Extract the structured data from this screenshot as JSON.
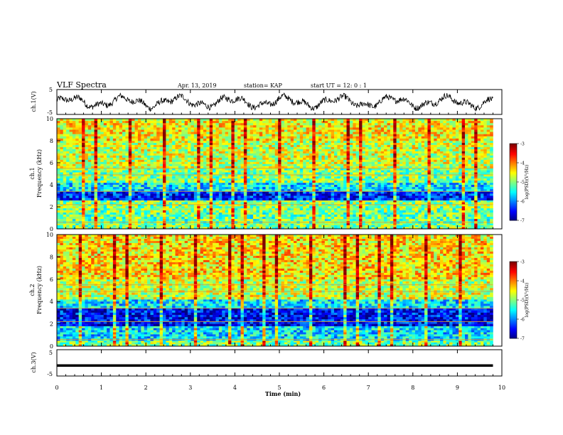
{
  "header": {
    "title": "VLF Spectra",
    "date": "Apr. 13, 2019",
    "station": "station= KAP",
    "start_ut": "start UT =  12: 0 : 1"
  },
  "chart_data": [
    {
      "type": "line",
      "panel": "ch1-waveform",
      "ylabel": "ch.1(V)",
      "ylim": [
        -5,
        5
      ],
      "y_ticks": [
        "5",
        "-5"
      ],
      "xlim": [
        0,
        10
      ],
      "note_values": "noisy waveform oscillating roughly between -3 and 3 V across 0–9.8 min"
    },
    {
      "type": "heatmap",
      "panel": "ch1-spectrogram",
      "ylabel": "ch.1\nFrequency (kHz)",
      "ylabel_line1": "ch.1",
      "ylabel_line2": "Frequency (kHz)",
      "ylim": [
        0,
        10
      ],
      "y_ticks": [
        "0",
        "2",
        "4",
        "6",
        "8",
        "10"
      ],
      "xlim": [
        0,
        10
      ],
      "data_extent_x": 9.8,
      "colorbar": {
        "label": "log(PSD)(V²/Hz)",
        "range": [
          -7,
          -3
        ],
        "ticks": [
          "-3",
          "-4",
          "-5",
          "-6",
          "-7"
        ]
      },
      "bands": [
        {
          "f0": 0,
          "f1": 0.5,
          "level": -5
        },
        {
          "f0": 0.5,
          "f1": 1.5,
          "level": -5.1
        },
        {
          "f0": 1.5,
          "f1": 2.6,
          "level": -5.0
        },
        {
          "f0": 2.6,
          "f1": 3.4,
          "level": -6.4
        },
        {
          "f0": 3.4,
          "f1": 4.2,
          "level": -5.6
        },
        {
          "f0": 4.2,
          "f1": 5.5,
          "level": -5.0
        },
        {
          "f0": 5.5,
          "f1": 8.0,
          "level": -4.7
        },
        {
          "f0": 8.0,
          "f1": 10,
          "level": -4.5
        }
      ]
    },
    {
      "type": "heatmap",
      "panel": "ch2-spectrogram",
      "ylabel_line1": "ch.2",
      "ylabel_line2": "Frequency (kHz)",
      "ylim": [
        0,
        10
      ],
      "y_ticks": [
        "0",
        "2",
        "4",
        "6",
        "8",
        "10"
      ],
      "xlim": [
        0,
        10
      ],
      "data_extent_x": 9.8,
      "colorbar": {
        "label": "log(PSD)(V²/Hz)",
        "range": [
          -7,
          -3
        ],
        "ticks": [
          "-3",
          "-4",
          "-5",
          "-6",
          "-7"
        ]
      },
      "bands": [
        {
          "f0": 0,
          "f1": 0.5,
          "level": -5.0
        },
        {
          "f0": 0.5,
          "f1": 1.8,
          "level": -5.6
        },
        {
          "f0": 1.8,
          "f1": 3.4,
          "level": -6.5
        },
        {
          "f0": 3.4,
          "f1": 4.2,
          "level": -5.6
        },
        {
          "f0": 4.2,
          "f1": 6.0,
          "level": -4.7
        },
        {
          "f0": 6.0,
          "f1": 10,
          "level": -4.4
        }
      ]
    },
    {
      "type": "line",
      "panel": "ch3-waveform",
      "ylabel": "ch.3(V)",
      "ylim": [
        -5,
        5
      ],
      "y_ticks": [
        "5",
        "-5"
      ],
      "xlim": [
        0,
        10
      ],
      "x": [
        0,
        9.8
      ],
      "y": [
        -1,
        -1
      ]
    }
  ],
  "x_axis": {
    "label": "Time (min)",
    "ticks": [
      "0",
      "1",
      "2",
      "3",
      "4",
      "5",
      "6",
      "7",
      "8",
      "9",
      "10"
    ]
  }
}
